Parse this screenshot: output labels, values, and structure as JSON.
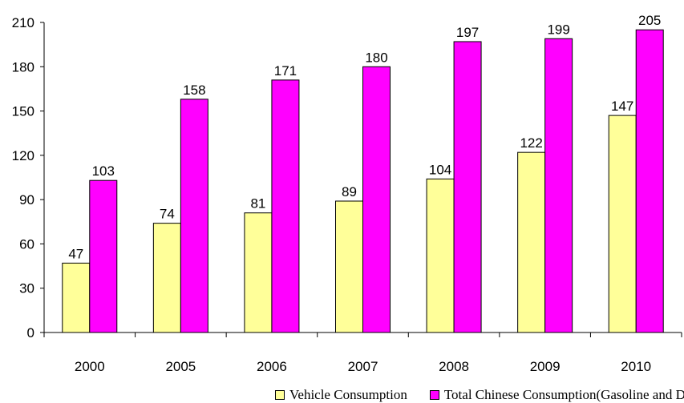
{
  "chart_data": {
    "type": "bar",
    "title": "",
    "xlabel": "",
    "ylabel": "",
    "categories": [
      "2000",
      "2005",
      "2006",
      "2007",
      "2008",
      "2009",
      "2010"
    ],
    "series": [
      {
        "name": "Vehicle Consumption",
        "values": [
          47,
          74,
          81,
          89,
          104,
          122,
          147
        ],
        "color": "#ffff99"
      },
      {
        "name": "Total Chinese Consumption(Gasoline and Diesel)",
        "values": [
          103,
          158,
          171,
          180,
          197,
          199,
          205
        ],
        "color": "#ff00ff"
      }
    ],
    "ylim": [
      0,
      210
    ],
    "yticks": [
      0,
      30,
      60,
      90,
      120,
      150,
      180,
      210
    ],
    "grid": false,
    "legend_position": "bottom"
  }
}
